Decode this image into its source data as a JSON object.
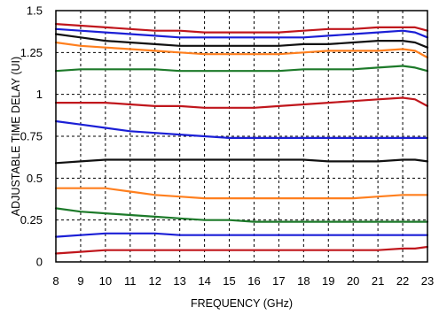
{
  "chart_data": {
    "type": "line",
    "title": "",
    "xlabel": "FREQUENCY (GHz)",
    "ylabel": "ADJUSTABLE TIME DELAY (UI)",
    "xlim": [
      8,
      23
    ],
    "ylim": [
      0,
      1.5
    ],
    "xticks": [
      "8",
      "9",
      "10",
      "11",
      "12",
      "13",
      "14",
      "15",
      "16",
      "17",
      "18",
      "19",
      "20",
      "21",
      "22",
      "23"
    ],
    "yticks": [
      {
        "value": 0,
        "label": "0"
      },
      {
        "value": 0.25,
        "label": "0.25"
      },
      {
        "value": 0.5,
        "label": "0.5"
      },
      {
        "value": 0.75,
        "label": "0.75"
      },
      {
        "value": 1,
        "label": "1"
      },
      {
        "value": 1.25,
        "label": "1.25"
      },
      {
        "value": 1.5,
        "label": "1.5"
      }
    ],
    "grid": true,
    "grid_style": "dashed",
    "x": [
      8,
      9,
      10,
      11,
      12,
      13,
      14,
      15,
      16,
      17,
      18,
      19,
      20,
      21,
      22,
      22.5,
      23
    ],
    "series": [
      {
        "color": "#c0161c",
        "values": [
          0.05,
          0.06,
          0.07,
          0.07,
          0.07,
          0.07,
          0.07,
          0.07,
          0.07,
          0.07,
          0.07,
          0.07,
          0.07,
          0.07,
          0.08,
          0.08,
          0.09
        ]
      },
      {
        "color": "#1b1fd6",
        "values": [
          0.15,
          0.16,
          0.17,
          0.17,
          0.17,
          0.16,
          0.16,
          0.16,
          0.16,
          0.16,
          0.16,
          0.16,
          0.16,
          0.16,
          0.16,
          0.16,
          0.16
        ]
      },
      {
        "color": "#1d7a2a",
        "values": [
          0.32,
          0.3,
          0.29,
          0.28,
          0.27,
          0.26,
          0.25,
          0.25,
          0.24,
          0.24,
          0.24,
          0.24,
          0.24,
          0.24,
          0.24,
          0.24,
          0.24
        ]
      },
      {
        "color": "#ff7f1e",
        "values": [
          0.44,
          0.44,
          0.44,
          0.42,
          0.4,
          0.39,
          0.38,
          0.38,
          0.38,
          0.38,
          0.38,
          0.38,
          0.38,
          0.39,
          0.4,
          0.4,
          0.4
        ]
      },
      {
        "color": "#111111",
        "values": [
          0.59,
          0.6,
          0.61,
          0.61,
          0.61,
          0.61,
          0.61,
          0.61,
          0.61,
          0.61,
          0.61,
          0.6,
          0.6,
          0.6,
          0.61,
          0.61,
          0.6
        ]
      },
      {
        "color": "#1b1fd6",
        "values": [
          0.84,
          0.82,
          0.8,
          0.78,
          0.77,
          0.76,
          0.75,
          0.74,
          0.74,
          0.74,
          0.74,
          0.74,
          0.74,
          0.74,
          0.74,
          0.74,
          0.74
        ]
      },
      {
        "color": "#c0161c",
        "values": [
          0.95,
          0.95,
          0.95,
          0.94,
          0.93,
          0.93,
          0.92,
          0.92,
          0.92,
          0.93,
          0.94,
          0.95,
          0.96,
          0.97,
          0.98,
          0.97,
          0.93
        ]
      },
      {
        "color": "#1d7a2a",
        "values": [
          1.14,
          1.15,
          1.15,
          1.15,
          1.15,
          1.14,
          1.14,
          1.14,
          1.14,
          1.14,
          1.15,
          1.15,
          1.15,
          1.16,
          1.17,
          1.16,
          1.14
        ]
      },
      {
        "color": "#ff7f1e",
        "values": [
          1.31,
          1.29,
          1.28,
          1.27,
          1.26,
          1.25,
          1.24,
          1.24,
          1.24,
          1.24,
          1.25,
          1.26,
          1.26,
          1.26,
          1.27,
          1.26,
          1.22
        ]
      },
      {
        "color": "#111111",
        "values": [
          1.36,
          1.34,
          1.32,
          1.31,
          1.3,
          1.29,
          1.29,
          1.29,
          1.29,
          1.29,
          1.3,
          1.3,
          1.31,
          1.32,
          1.32,
          1.31,
          1.28
        ]
      },
      {
        "color": "#1b1fd6",
        "values": [
          1.39,
          1.38,
          1.37,
          1.36,
          1.35,
          1.34,
          1.34,
          1.34,
          1.34,
          1.34,
          1.34,
          1.35,
          1.36,
          1.37,
          1.38,
          1.37,
          1.34
        ]
      },
      {
        "color": "#c0161c",
        "values": [
          1.42,
          1.41,
          1.4,
          1.39,
          1.38,
          1.38,
          1.37,
          1.37,
          1.37,
          1.37,
          1.38,
          1.39,
          1.39,
          1.4,
          1.4,
          1.4,
          1.38
        ]
      }
    ]
  }
}
